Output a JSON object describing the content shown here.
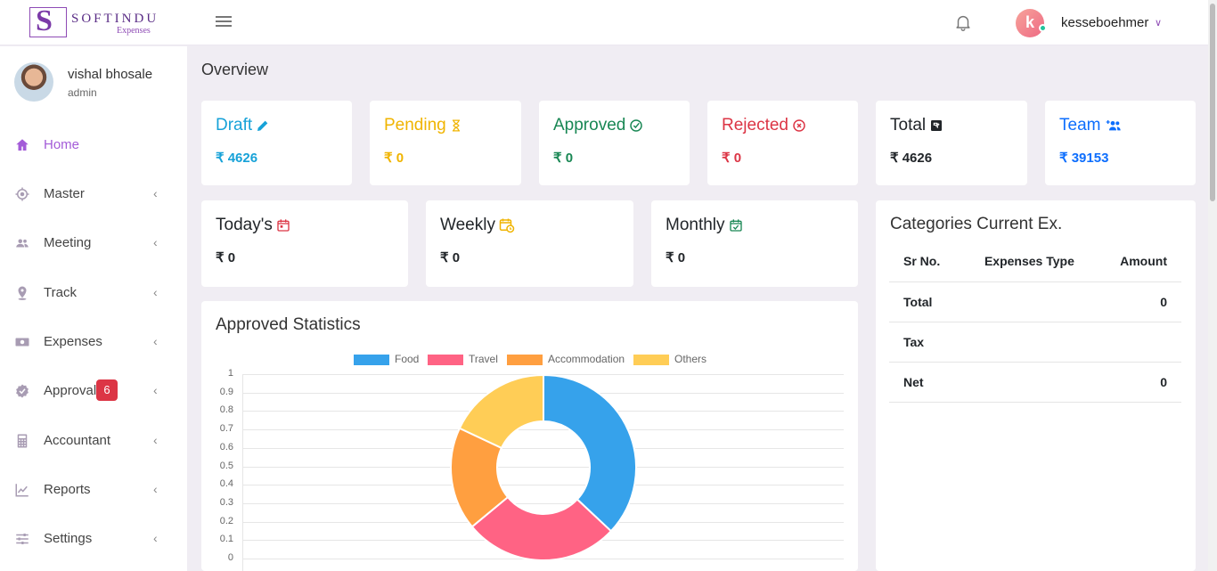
{
  "brand": {
    "name": "SOFTINDU",
    "sub": "Expenses",
    "letter": "S"
  },
  "header": {
    "avatar_letter": "k",
    "username": "kesseboehmer"
  },
  "profile": {
    "name": "vishal bhosale",
    "role": "admin"
  },
  "sidebar": {
    "items": [
      {
        "label": "Home",
        "icon": "home-icon"
      },
      {
        "label": "Master",
        "icon": "target-icon"
      },
      {
        "label": "Meeting",
        "icon": "users-icon"
      },
      {
        "label": "Track",
        "icon": "map-pin-icon"
      },
      {
        "label": "Expenses",
        "icon": "money-icon"
      },
      {
        "label": "Approval",
        "icon": "verified-icon",
        "badge": "6"
      },
      {
        "label": "Accountant",
        "icon": "calculator-icon"
      },
      {
        "label": "Reports",
        "icon": "chart-line-icon"
      },
      {
        "label": "Settings",
        "icon": "sliders-icon"
      }
    ]
  },
  "main": {
    "heading": "Overview",
    "status_cards": [
      {
        "title": "Draft",
        "value": "₹ 4626",
        "color": "#17a2d8",
        "icon": "pencil-icon"
      },
      {
        "title": "Pending",
        "value": "₹ 0",
        "color": "#f0b400",
        "icon": "hourglass-icon"
      },
      {
        "title": "Approved",
        "value": "₹ 0",
        "color": "#198754",
        "icon": "check-circle-icon"
      },
      {
        "title": "Rejected",
        "value": "₹ 0",
        "color": "#dc3545",
        "icon": "x-circle-icon"
      },
      {
        "title": "Total",
        "value": "₹ 4626",
        "color": "#212529",
        "icon": "stack-icon"
      },
      {
        "title": "Team",
        "value": "₹ 39153",
        "color": "#0d6efd",
        "icon": "team-icon"
      }
    ],
    "period_cards": [
      {
        "title": "Today's",
        "value": "₹ 0",
        "icon": "calendar-icon",
        "icon_color": "#dc3545"
      },
      {
        "title": "Weekly",
        "value": "₹ 0",
        "icon": "calendar-clock-icon",
        "icon_color": "#f0b400"
      },
      {
        "title": "Monthly",
        "value": "₹ 0",
        "icon": "calendar-check-icon",
        "icon_color": "#198754"
      }
    ],
    "categories": {
      "title": "Categories Current Ex.",
      "headers": [
        "Sr No.",
        "Expenses Type",
        "Amount"
      ],
      "rows": [
        {
          "label": "Total",
          "amount": "0"
        },
        {
          "label": "Tax",
          "amount": ""
        },
        {
          "label": "Net",
          "amount": "0"
        }
      ]
    },
    "approved_stats": {
      "title": "Approved Statistics"
    }
  },
  "chart_data": {
    "type": "pie",
    "donut": true,
    "categories": [
      "Food",
      "Travel",
      "Accommodation",
      "Others"
    ],
    "values": [
      37,
      27,
      18,
      18
    ],
    "colors": [
      "#36a2eb",
      "#ff6384",
      "#ff9f40",
      "#ffcd56"
    ],
    "yticks": [
      "1",
      "0.9",
      "0.8",
      "0.7",
      "0.6",
      "0.5",
      "0.4",
      "0.3",
      "0.2",
      "0.1",
      "0"
    ],
    "legend": "top",
    "grid": true
  }
}
